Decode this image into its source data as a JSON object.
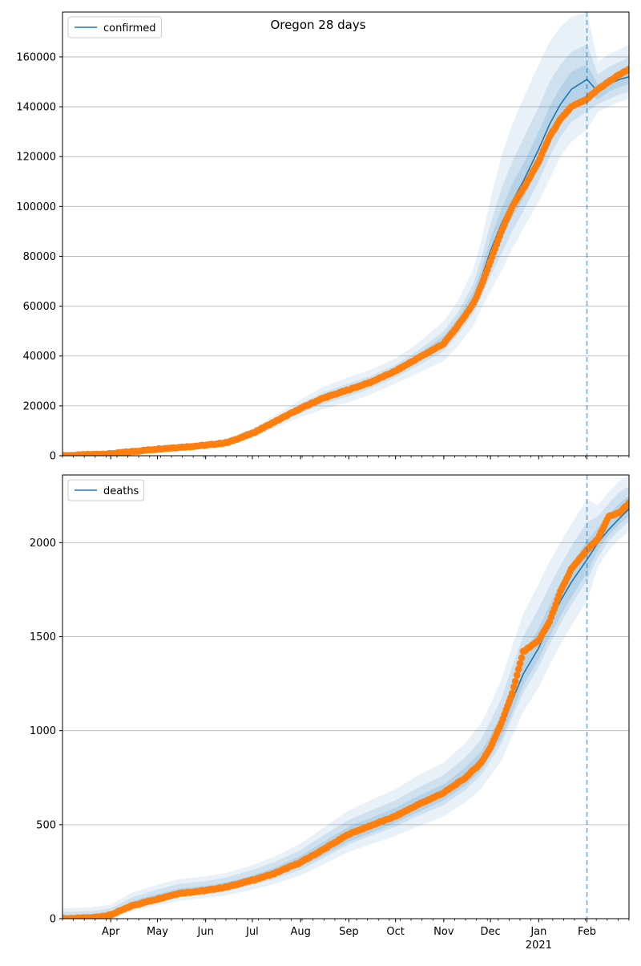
{
  "figure": {
    "title": "Oregon 28 days"
  },
  "chart_data": [
    {
      "type": "line",
      "panel": "top",
      "title": "Oregon 28 days",
      "xlabel": "",
      "ylabel": "",
      "xlim": [
        "2020-03-01",
        "2021-02-28"
      ],
      "ylim": [
        0,
        178000
      ],
      "grid": "y",
      "legend": {
        "position": "top-left",
        "entries": [
          "confirmed"
        ]
      },
      "cutoff_date": "2021-02-01",
      "yticks": [
        0,
        20000,
        40000,
        60000,
        80000,
        100000,
        120000,
        140000,
        160000
      ],
      "ytick_labels": [
        "0",
        "20000",
        "40000",
        "60000",
        "80000",
        "100000",
        "120000",
        "140000",
        "160000"
      ],
      "series": [
        {
          "name": "confirmed",
          "kind": "model-mean",
          "color": "#1f77b4",
          "x": [
            "2020-03-01",
            "2020-04-01",
            "2020-05-01",
            "2020-06-01",
            "2020-06-15",
            "2020-07-01",
            "2020-07-15",
            "2020-08-01",
            "2020-08-15",
            "2020-09-01",
            "2020-09-15",
            "2020-10-01",
            "2020-10-15",
            "2020-11-01",
            "2020-11-10",
            "2020-11-20",
            "2020-11-25",
            "2020-12-01",
            "2020-12-08",
            "2020-12-15",
            "2020-12-22",
            "2021-01-01",
            "2021-01-08",
            "2021-01-15",
            "2021-01-22",
            "2021-02-01",
            "2021-02-08",
            "2021-02-15",
            "2021-02-22",
            "2021-02-28"
          ],
          "y": [
            0,
            900,
            2700,
            4200,
            5400,
            9000,
            13500,
            19000,
            23000,
            26500,
            29500,
            34000,
            39000,
            46000,
            53000,
            63000,
            71000,
            82000,
            93000,
            102000,
            110000,
            123000,
            133000,
            141000,
            147000,
            151000,
            146000,
            149000,
            151000,
            152000
          ]
        },
        {
          "name": "observed",
          "kind": "points",
          "color": "#ff7f0e",
          "x": [
            "2020-03-01",
            "2020-04-01",
            "2020-05-01",
            "2020-06-01",
            "2020-06-15",
            "2020-07-01",
            "2020-07-15",
            "2020-08-01",
            "2020-08-15",
            "2020-09-01",
            "2020-09-15",
            "2020-10-01",
            "2020-10-15",
            "2020-11-01",
            "2020-11-10",
            "2020-11-20",
            "2020-11-25",
            "2020-12-01",
            "2020-12-08",
            "2020-12-15",
            "2020-12-22",
            "2021-01-01",
            "2021-01-08",
            "2021-01-15",
            "2021-01-22",
            "2021-02-01",
            "2021-02-08",
            "2021-02-15",
            "2021-02-22",
            "2021-02-28"
          ],
          "y": [
            0,
            800,
            2700,
            4200,
            5300,
            9000,
            13500,
            19000,
            23000,
            26500,
            29500,
            34000,
            39000,
            45000,
            52000,
            61000,
            68000,
            78000,
            90000,
            100000,
            107000,
            118000,
            128000,
            135000,
            140000,
            143000,
            147000,
            150000,
            153000,
            155000
          ]
        }
      ],
      "bands": [
        {
          "level": "outer",
          "upper": [
            0,
            1500,
            3800,
            5500,
            7000,
            11000,
            16000,
            22500,
            27500,
            31500,
            34500,
            39000,
            45000,
            54000,
            62000,
            75000,
            86000,
            103000,
            120000,
            133000,
            143000,
            157000,
            166000,
            172000,
            176000,
            178000,
            158000,
            161000,
            163000,
            165000
          ],
          "lower": [
            0,
            300,
            1700,
            3000,
            4000,
            7200,
            11000,
            15500,
            18500,
            21500,
            24500,
            29000,
            33000,
            38000,
            44000,
            52000,
            59000,
            66000,
            74000,
            83000,
            91000,
            102000,
            111000,
            120000,
            126000,
            131000,
            138000,
            140000,
            142000,
            143000
          ]
        },
        {
          "level": "mid",
          "upper": [
            0,
            1200,
            3300,
            4900,
            6200,
            10000,
            14800,
            20800,
            25300,
            29000,
            32000,
            36500,
            42000,
            50000,
            57500,
            69000,
            79000,
            93000,
            107000,
            118000,
            127000,
            140000,
            150000,
            157000,
            162000,
            165000,
            153000,
            156000,
            158000,
            160000
          ],
          "lower": [
            0,
            500,
            2100,
            3500,
            4600,
            8000,
            12200,
            17200,
            20600,
            23900,
            27000,
            31500,
            36000,
            42000,
            48500,
            57000,
            64000,
            72000,
            81000,
            90000,
            98000,
            110000,
            120000,
            128000,
            134000,
            138000,
            141000,
            143000,
            145000,
            146000
          ]
        },
        {
          "level": "inner",
          "upper": [
            0,
            1000,
            3000,
            4500,
            5800,
            9500,
            14100,
            19800,
            24100,
            27700,
            30700,
            35200,
            40500,
            48000,
            55000,
            66000,
            74500,
            87000,
            99000,
            109000,
            117000,
            130000,
            140000,
            148000,
            154000,
            157000,
            149000,
            152000,
            154000,
            155000
          ],
          "lower": [
            0,
            750,
            2400,
            3900,
            5000,
            8500,
            12900,
            18200,
            21900,
            25300,
            28300,
            32800,
            37500,
            44000,
            51000,
            60000,
            67500,
            76500,
            87000,
            95500,
            103000,
            116000,
            126000,
            134000,
            140000,
            145000,
            143000,
            146000,
            148000,
            149000
          ]
        }
      ]
    },
    {
      "type": "line",
      "panel": "bottom",
      "title": "",
      "xlabel": "",
      "ylabel": "",
      "xlim": [
        "2020-03-01",
        "2021-02-28"
      ],
      "ylim": [
        0,
        2360
      ],
      "grid": "y",
      "legend": {
        "position": "top-left",
        "entries": [
          "deaths"
        ]
      },
      "cutoff_date": "2021-02-01",
      "yticks": [
        0,
        500,
        1000,
        1500,
        2000
      ],
      "ytick_labels": [
        "0",
        "500",
        "1000",
        "1500",
        "2000"
      ],
      "series": [
        {
          "name": "deaths",
          "kind": "model-mean",
          "color": "#1f77b4",
          "x": [
            "2020-03-01",
            "2020-03-20",
            "2020-04-01",
            "2020-04-15",
            "2020-05-01",
            "2020-05-15",
            "2020-06-01",
            "2020-06-15",
            "2020-07-01",
            "2020-07-15",
            "2020-08-01",
            "2020-08-15",
            "2020-09-01",
            "2020-09-15",
            "2020-10-01",
            "2020-10-15",
            "2020-11-01",
            "2020-11-15",
            "2020-11-25",
            "2020-12-01",
            "2020-12-08",
            "2020-12-15",
            "2020-12-22",
            "2021-01-01",
            "2021-01-08",
            "2021-01-15",
            "2021-01-22",
            "2021-02-01",
            "2021-02-08",
            "2021-02-15",
            "2021-02-22",
            "2021-02-28"
          ],
          "y": [
            0,
            5,
            20,
            70,
            105,
            135,
            150,
            170,
            205,
            240,
            300,
            365,
            445,
            490,
            545,
            605,
            670,
            750,
            830,
            910,
            1010,
            1160,
            1300,
            1440,
            1570,
            1690,
            1790,
            1910,
            2000,
            2070,
            2130,
            2180
          ]
        },
        {
          "name": "observed",
          "kind": "points",
          "color": "#ff7f0e",
          "x": [
            "2020-03-01",
            "2020-03-20",
            "2020-04-01",
            "2020-04-15",
            "2020-05-01",
            "2020-05-15",
            "2020-06-01",
            "2020-06-15",
            "2020-07-01",
            "2020-07-15",
            "2020-08-01",
            "2020-08-15",
            "2020-09-01",
            "2020-09-15",
            "2020-10-01",
            "2020-10-15",
            "2020-11-01",
            "2020-11-15",
            "2020-11-25",
            "2020-12-01",
            "2020-12-08",
            "2020-12-15",
            "2020-12-22",
            "2021-01-01",
            "2021-01-08",
            "2021-01-15",
            "2021-01-22",
            "2021-02-01",
            "2021-02-08",
            "2021-02-15",
            "2021-02-22",
            "2021-02-28"
          ],
          "y": [
            0,
            5,
            20,
            70,
            105,
            135,
            150,
            170,
            205,
            240,
            300,
            365,
            450,
            495,
            545,
            605,
            670,
            750,
            830,
            910,
            1040,
            1200,
            1420,
            1480,
            1580,
            1740,
            1860,
            1960,
            2020,
            2140,
            2160,
            2210
          ]
        }
      ],
      "bands": [
        {
          "level": "outer",
          "upper": [
            55,
            60,
            75,
            140,
            180,
            210,
            225,
            245,
            285,
            330,
            400,
            480,
            575,
            630,
            690,
            760,
            830,
            935,
            1040,
            1140,
            1270,
            1450,
            1620,
            1780,
            1900,
            2000,
            2100,
            2230,
            2200,
            2270,
            2330,
            2360
          ],
          "lower": [
            0,
            0,
            5,
            40,
            70,
            95,
            110,
            125,
            155,
            185,
            230,
            285,
            355,
            395,
            440,
            490,
            545,
            620,
            690,
            760,
            840,
            970,
            1100,
            1230,
            1350,
            1460,
            1560,
            1690,
            1870,
            1960,
            2020,
            2060
          ]
        },
        {
          "level": "mid",
          "upper": [
            35,
            40,
            55,
            115,
            155,
            185,
            200,
            220,
            260,
            300,
            365,
            440,
            525,
            575,
            630,
            695,
            765,
            860,
            955,
            1050,
            1170,
            1340,
            1500,
            1650,
            1770,
            1880,
            1980,
            2110,
            2140,
            2210,
            2270,
            2300
          ],
          "lower": [
            0,
            0,
            10,
            55,
            85,
            115,
            130,
            145,
            180,
            210,
            260,
            320,
            395,
            440,
            490,
            545,
            605,
            685,
            765,
            840,
            930,
            1070,
            1200,
            1340,
            1460,
            1570,
            1670,
            1800,
            1920,
            2010,
            2070,
            2110
          ]
        },
        {
          "level": "inner",
          "upper": [
            15,
            20,
            35,
            95,
            130,
            160,
            175,
            195,
            230,
            270,
            335,
            405,
            490,
            535,
            590,
            650,
            715,
            805,
            890,
            975,
            1090,
            1250,
            1400,
            1545,
            1670,
            1785,
            1885,
            2010,
            2080,
            2150,
            2210,
            2250
          ],
          "lower": [
            0,
            0,
            15,
            60,
            95,
            120,
            135,
            150,
            185,
            220,
            275,
            335,
            410,
            455,
            510,
            565,
            630,
            710,
            790,
            870,
            960,
            1100,
            1240,
            1380,
            1500,
            1610,
            1710,
            1840,
            1960,
            2040,
            2100,
            2140
          ]
        }
      ]
    }
  ],
  "x_axis": {
    "tick_labels": [
      "Apr",
      "May",
      "Jun",
      "Jul",
      "Aug",
      "Sep",
      "Oct",
      "Nov",
      "Dec",
      "Jan",
      "Feb"
    ],
    "tick_dates": [
      "2020-04-01",
      "2020-05-01",
      "2020-06-01",
      "2020-07-01",
      "2020-08-01",
      "2020-09-01",
      "2020-10-01",
      "2020-11-01",
      "2020-12-01",
      "2021-01-01",
      "2021-02-01"
    ],
    "year_label": "2021",
    "year_label_date": "2021-01-01"
  },
  "colors": {
    "model": "#1f77b4",
    "observed": "#ff7f0e",
    "band": "#1f77b4",
    "grid": "#b0b0b0",
    "cutoff": "#1f77b4"
  }
}
